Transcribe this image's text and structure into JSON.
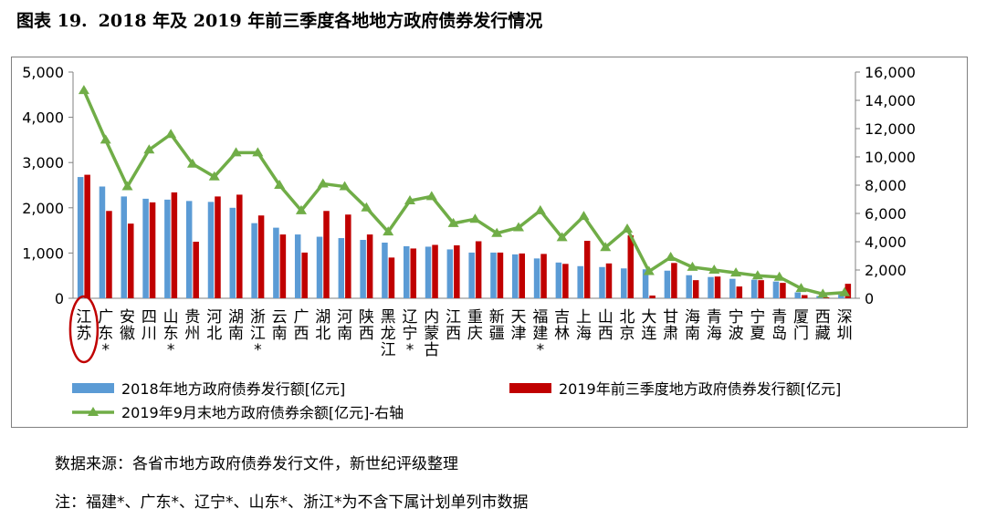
{
  "figure": {
    "number": "图表 19.",
    "title": "2018 年及 2019 年前三季度各地地方政府债券发行情况"
  },
  "footnotes": {
    "source": "数据来源：各省市地方政府债券发行文件，新世纪评级整理",
    "note": "注：福建*、广东*、辽宁*、山东*、浙江*为不含下属计划单列市数据"
  },
  "colors": {
    "series_2018": "#5b9bd5",
    "series_2019": "#c00000",
    "series_balance": "#70ad47",
    "highlight_circle": "#c00000"
  },
  "chart_data": {
    "type": "bar",
    "categories": [
      "江苏",
      "广东*",
      "安徽",
      "四川",
      "山东*",
      "贵州",
      "河北",
      "湖南",
      "浙江*",
      "云南",
      "广西",
      "湖北",
      "河南",
      "陕西",
      "黑龙江",
      "辽宁*",
      "内蒙古",
      "江西",
      "重庆",
      "新疆",
      "天津",
      "福建*",
      "吉林",
      "上海",
      "山西",
      "北京",
      "大连",
      "甘肃",
      "海南",
      "青海",
      "宁波",
      "宁夏",
      "青岛",
      "厦门",
      "西藏",
      "深圳"
    ],
    "highlighted_category": "江苏",
    "y_left": {
      "ylim": [
        0,
        5000
      ],
      "ticks": [
        "0",
        "1,000",
        "2,000",
        "3,000",
        "4,000",
        "5,000"
      ]
    },
    "y_right": {
      "ylim": [
        0,
        16000
      ],
      "ticks": [
        "0",
        "2,000",
        "4,000",
        "6,000",
        "8,000",
        "10,000",
        "12,000",
        "14,000",
        "16,000"
      ]
    },
    "series": [
      {
        "name": "2018年地方政府债券发行额[亿元]",
        "type": "bar",
        "axis": "left",
        "values": [
          2680,
          2470,
          2250,
          2200,
          2180,
          2150,
          2130,
          2000,
          1660,
          1560,
          1410,
          1360,
          1330,
          1290,
          1230,
          1150,
          1140,
          1080,
          1010,
          1010,
          970,
          880,
          790,
          710,
          690,
          660,
          640,
          610,
          510,
          470,
          430,
          410,
          370,
          130,
          50,
          80
        ]
      },
      {
        "name": "2019年前三季度地方政府债券发行额[亿元]",
        "type": "bar",
        "axis": "left",
        "values": [
          2730,
          1930,
          1650,
          2120,
          2340,
          1250,
          2250,
          2290,
          1830,
          1410,
          1010,
          1930,
          1850,
          1410,
          900,
          1100,
          1180,
          1170,
          1260,
          1010,
          990,
          980,
          760,
          1270,
          770,
          1390,
          60,
          780,
          400,
          480,
          260,
          400,
          340,
          70,
          20,
          320
        ]
      },
      {
        "name": "2019年9月末地方政府债券余额[亿元]-右轴",
        "type": "line",
        "axis": "right",
        "values": [
          14700,
          11200,
          7900,
          10500,
          11600,
          9500,
          8600,
          10300,
          10300,
          8000,
          6200,
          8100,
          7900,
          6400,
          4700,
          6900,
          7200,
          5300,
          5600,
          4600,
          5000,
          6200,
          4300,
          5800,
          3600,
          4900,
          1900,
          2900,
          2200,
          2000,
          1800,
          1600,
          1500,
          700,
          300,
          400
        ]
      }
    ],
    "legend_placement": "bottom",
    "grid": false
  }
}
